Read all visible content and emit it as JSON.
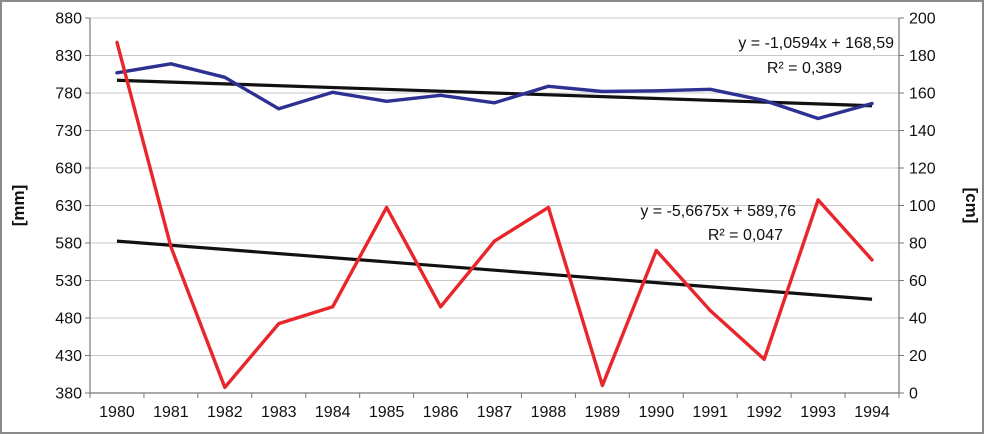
{
  "chart_data": {
    "type": "line",
    "title": "",
    "x": [
      "1980",
      "1981",
      "1982",
      "1983",
      "1984",
      "1985",
      "1986",
      "1987",
      "1988",
      "1989",
      "1990",
      "1991",
      "1992",
      "1993",
      "1994"
    ],
    "ylabel_left": "[mm]",
    "ylabel_right": "[cm]",
    "ylim_left": [
      380,
      880
    ],
    "ylim_right": [
      0,
      200
    ],
    "yticks_left": [
      "380",
      "430",
      "480",
      "530",
      "580",
      "630",
      "680",
      "730",
      "780",
      "830",
      "880"
    ],
    "yticks_right": [
      "0",
      "20",
      "40",
      "60",
      "80",
      "100",
      "120",
      "140",
      "160",
      "180",
      "200"
    ],
    "grid": true,
    "series": [
      {
        "axis": "left",
        "color": "#2e3192",
        "values": [
          807,
          819,
          801,
          759,
          781,
          769,
          777,
          767,
          789,
          782,
          783,
          785,
          770,
          746,
          766
        ]
      },
      {
        "axis": "right",
        "color": "#e8262b",
        "values": [
          187,
          78,
          3,
          37,
          46,
          99,
          46,
          81,
          99,
          4,
          76,
          44,
          18,
          103,
          71
        ]
      }
    ],
    "trendlines": [
      {
        "axis": "left",
        "color": "#111111",
        "equation": "y = -1,0594x + 168,59",
        "r2": "R² = 0,389",
        "y_start": 797,
        "y_end": 763
      },
      {
        "axis": "right",
        "color": "#111111",
        "equation": "y = -5,6675x + 589,76",
        "r2": "R² = 0,047",
        "y_start": 81,
        "y_end": 50
      }
    ]
  }
}
